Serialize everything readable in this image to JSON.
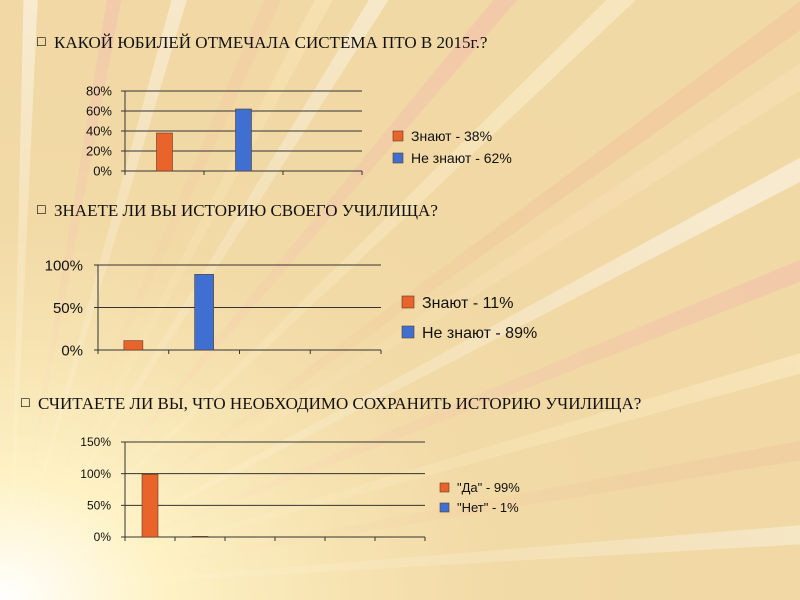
{
  "colors": {
    "orange": "#e8642a",
    "blue": "#3f6fd1"
  },
  "bullet_icon": "square-bullet-icon",
  "questions": [
    "КАКОЙ ЮБИЛЕЙ ОТМЕЧАЛА СИСТЕМА ПТО В 2015г.?",
    "ЗНАЕТЕ ЛИ ВЫ ИСТОРИЮ СВОЕГО УЧИЛИЩА?",
    "СЧИТАЕТЕ ЛИ ВЫ, ЧТО НЕОБХОДИМО  СОХРАНИТЬ ИСТОРИЮ УЧИЛИЩА?"
  ],
  "chart_data": [
    {
      "type": "bar",
      "yticks": [
        "0%",
        "20%",
        "40%",
        "60%",
        "80%"
      ],
      "ylim": [
        0,
        80
      ],
      "grid": true,
      "legend_position": "right",
      "series": [
        {
          "name": "Знают - 38%",
          "category_index": 0,
          "value": 38,
          "color": "orange"
        },
        {
          "name": "Не знают - 62%",
          "category_index": 1,
          "value": 62,
          "color": "blue"
        }
      ]
    },
    {
      "type": "bar",
      "yticks": [
        "0%",
        "50%",
        "100%"
      ],
      "ylim": [
        0,
        100
      ],
      "grid": true,
      "legend_position": "right",
      "series": [
        {
          "name": "Знают - 11%",
          "category_index": 0,
          "value": 11,
          "color": "orange"
        },
        {
          "name": "Не знают - 89%",
          "category_index": 1,
          "value": 89,
          "color": "blue"
        }
      ]
    },
    {
      "type": "bar",
      "yticks": [
        "0%",
        "50%",
        "100%",
        "150%"
      ],
      "ylim": [
        0,
        150
      ],
      "grid": true,
      "legend_position": "right",
      "series": [
        {
          "name": "\"Да\" - 99%",
          "category_index": 0,
          "value": 99,
          "color": "orange"
        },
        {
          "name": "\"Нет\" - 1%",
          "category_index": 1,
          "value": 1,
          "color": "blue"
        }
      ]
    }
  ]
}
